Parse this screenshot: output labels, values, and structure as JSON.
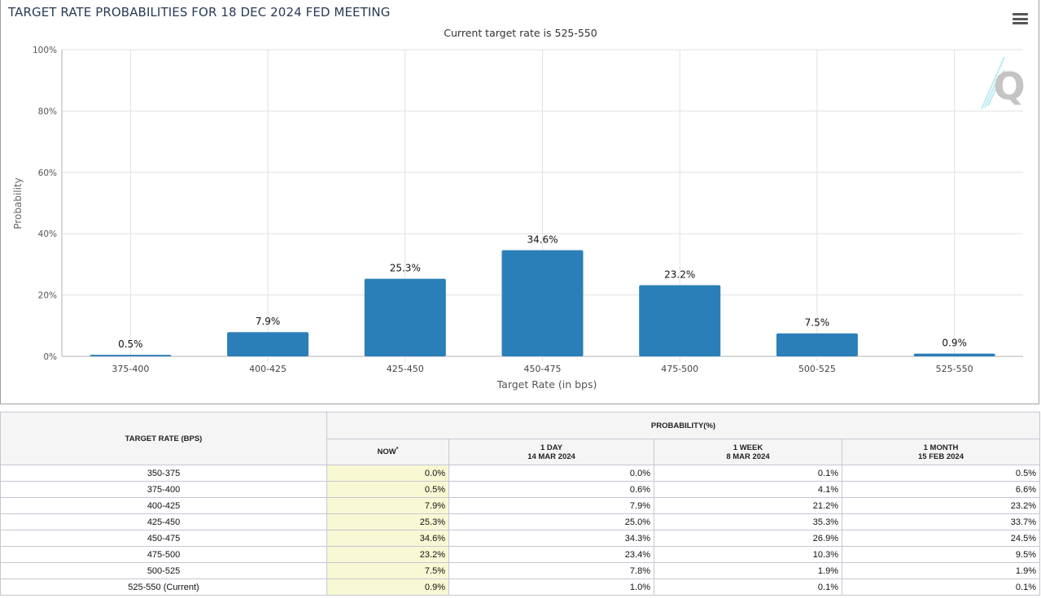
{
  "header": {
    "title": "TARGET RATE PROBABILITIES FOR 18 DEC 2024 FED MEETING",
    "subtitle": "Current target rate is 525-550",
    "menu_icon": "hamburger-menu-icon",
    "watermark_icon": "quikstrike-q-logo"
  },
  "colors": {
    "bar": "#2b7fb8",
    "now_column_bg": "#f8f8d4",
    "title": "#2b3a55"
  },
  "chart_data": {
    "type": "bar",
    "title": "TARGET RATE PROBABILITIES FOR 18 DEC 2024 FED MEETING",
    "subtitle": "Current target rate is 525-550",
    "xlabel": "Target Rate (in bps)",
    "ylabel": "Probability",
    "categories": [
      "375-400",
      "400-425",
      "425-450",
      "450-475",
      "475-500",
      "500-525",
      "525-550"
    ],
    "values": [
      0.5,
      7.9,
      25.3,
      34.6,
      23.2,
      7.5,
      0.9
    ],
    "data_labels": [
      "0.5%",
      "7.9%",
      "25.3%",
      "34.6%",
      "23.2%",
      "7.5%",
      "0.9%"
    ],
    "ylim": [
      0,
      100
    ],
    "yticks": [
      0,
      20,
      40,
      60,
      80,
      100
    ],
    "ytick_labels": [
      "0%",
      "20%",
      "40%",
      "60%",
      "80%",
      "100%"
    ],
    "grid": true,
    "legend": "none"
  },
  "table": {
    "header_rate": "TARGET RATE (BPS)",
    "header_probability": "PROBABILITY(%)",
    "columns": [
      {
        "label": "NOW",
        "sup": "*",
        "date": ""
      },
      {
        "label": "1 DAY",
        "date": "14 MAR 2024"
      },
      {
        "label": "1 WEEK",
        "date": "8 MAR 2024"
      },
      {
        "label": "1 MONTH",
        "date": "15 FEB 2024"
      }
    ],
    "rows": [
      {
        "rate": "350-375",
        "values": [
          "0.0%",
          "0.0%",
          "0.1%",
          "0.5%"
        ]
      },
      {
        "rate": "375-400",
        "values": [
          "0.5%",
          "0.6%",
          "4.1%",
          "6.6%"
        ]
      },
      {
        "rate": "400-425",
        "values": [
          "7.9%",
          "7.9%",
          "21.2%",
          "23.2%"
        ]
      },
      {
        "rate": "425-450",
        "values": [
          "25.3%",
          "25.0%",
          "35.3%",
          "33.7%"
        ]
      },
      {
        "rate": "450-475",
        "values": [
          "34.6%",
          "34.3%",
          "26.9%",
          "24.5%"
        ]
      },
      {
        "rate": "475-500",
        "values": [
          "23.2%",
          "23.4%",
          "10.3%",
          "9.5%"
        ]
      },
      {
        "rate": "500-525",
        "values": [
          "7.5%",
          "7.8%",
          "1.9%",
          "1.9%"
        ]
      },
      {
        "rate": "525-550 (Current)",
        "values": [
          "0.9%",
          "1.0%",
          "0.1%",
          "0.1%"
        ]
      }
    ]
  }
}
